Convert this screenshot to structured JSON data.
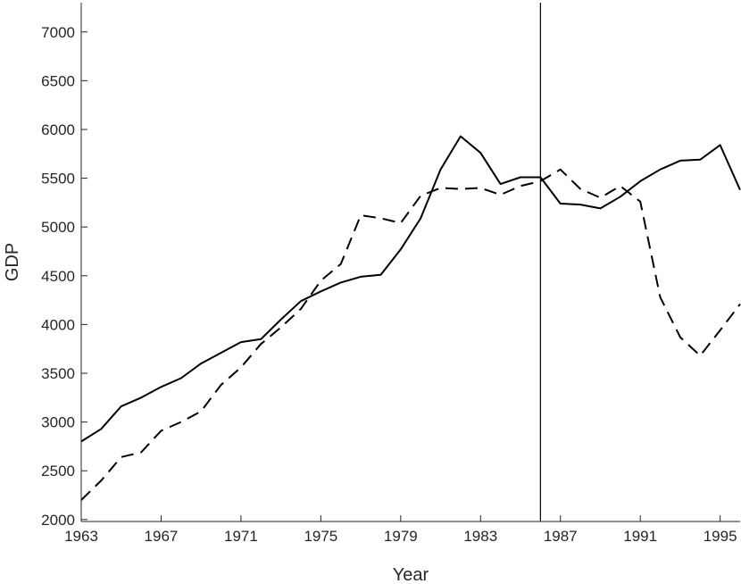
{
  "chart_data": {
    "type": "line",
    "title": "",
    "xlabel": "Year",
    "ylabel": "GDP",
    "xlim": [
      1963,
      1996
    ],
    "ylim": [
      1980,
      7300
    ],
    "x_ticks": [
      1963,
      1967,
      1971,
      1975,
      1979,
      1983,
      1987,
      1991,
      1995
    ],
    "y_ticks": [
      2000,
      2500,
      3000,
      3500,
      4000,
      4500,
      5000,
      5500,
      6000,
      6500,
      7000
    ],
    "x_tick_labels": [
      "1963",
      "1967",
      "1971",
      "1975",
      "1979",
      "1983",
      "1987",
      "1991",
      "1995"
    ],
    "y_tick_labels": [
      "2000",
      "2500",
      "3000",
      "3500",
      "4000",
      "4500",
      "5000",
      "5500",
      "6000",
      "6500",
      "7000"
    ],
    "vertical_line_x": 1986,
    "grid": false,
    "legend": "none",
    "x": [
      1963,
      1964,
      1965,
      1966,
      1967,
      1968,
      1969,
      1970,
      1971,
      1972,
      1973,
      1974,
      1975,
      1976,
      1977,
      1978,
      1979,
      1980,
      1981,
      1982,
      1983,
      1984,
      1985,
      1986,
      1987,
      1988,
      1989,
      1990,
      1991,
      1992,
      1993,
      1994,
      1995,
      1996
    ],
    "series": [
      {
        "style": "solid",
        "color": "#000000",
        "values": [
          2800,
          2930,
          3160,
          3250,
          3360,
          3450,
          3600,
          3710,
          3820,
          3850,
          4050,
          4240,
          4340,
          4430,
          4490,
          4510,
          4770,
          5090,
          5590,
          5930,
          5760,
          5440,
          5510,
          5510,
          5240,
          5230,
          5190,
          5310,
          5470,
          5590,
          5680,
          5690,
          5840,
          5380
        ]
      },
      {
        "style": "dashed",
        "color": "#000000",
        "values": [
          2200,
          2400,
          2640,
          2690,
          2910,
          3000,
          3110,
          3380,
          3560,
          3800,
          3970,
          4160,
          4450,
          4620,
          5120,
          5090,
          5040,
          5320,
          5400,
          5390,
          5400,
          5330,
          5420,
          5470,
          5590,
          5390,
          5300,
          5420,
          5260,
          4280,
          3870,
          3680,
          3940,
          4210
        ]
      }
    ]
  }
}
